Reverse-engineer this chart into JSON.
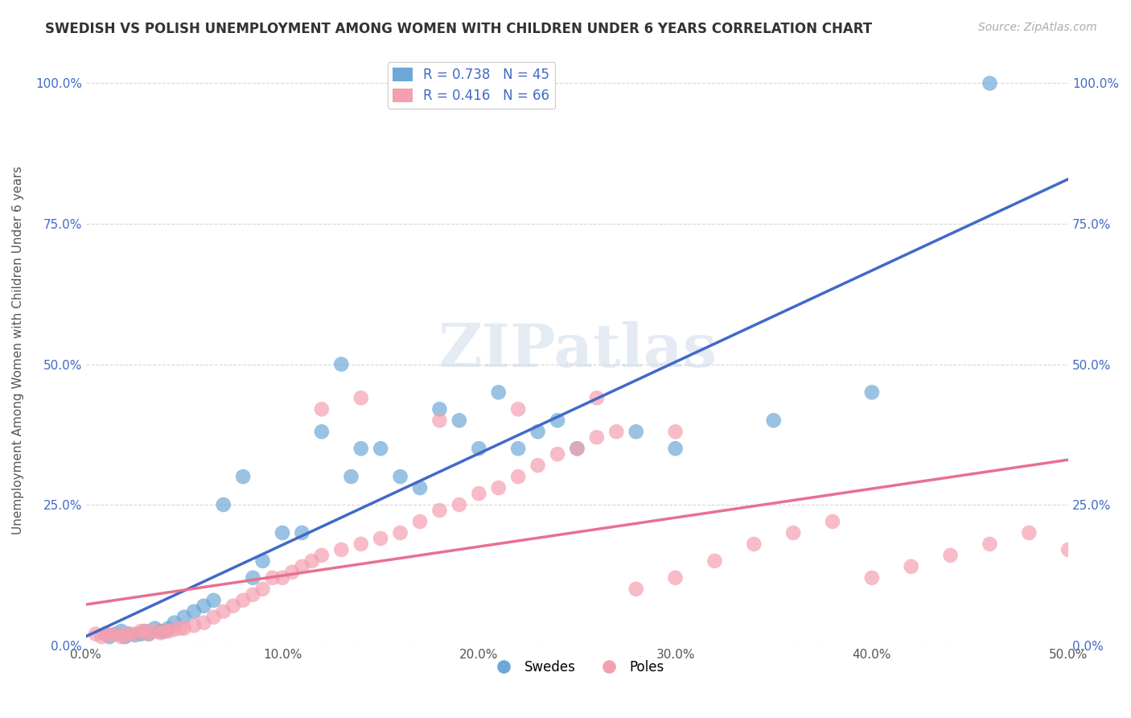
{
  "title": "SWEDISH VS POLISH UNEMPLOYMENT AMONG WOMEN WITH CHILDREN UNDER 6 YEARS CORRELATION CHART",
  "source": "Source: ZipAtlas.com",
  "ylabel": "Unemployment Among Women with Children Under 6 years",
  "xlim": [
    0.0,
    0.5
  ],
  "ylim": [
    0.0,
    1.05
  ],
  "xticks": [
    0.0,
    0.1,
    0.2,
    0.3,
    0.4,
    0.5
  ],
  "xtick_labels": [
    "0.0%",
    "10.0%",
    "20.0%",
    "30.0%",
    "40.0%",
    "50.0%"
  ],
  "yticks": [
    0.0,
    0.25,
    0.5,
    0.75,
    1.0
  ],
  "ytick_labels": [
    "0.0%",
    "25.0%",
    "50.0%",
    "75.0%",
    "100.0%"
  ],
  "blue_R": "0.738",
  "blue_N": "45",
  "pink_R": "0.416",
  "pink_N": "66",
  "blue_color": "#6ea8d8",
  "pink_color": "#f4a0b0",
  "blue_line_color": "#4169c8",
  "pink_line_color": "#e87090",
  "legend_label_blue": "Swedes",
  "legend_label_pink": "Poles",
  "watermark": "ZIPatlas",
  "blue_scatter_x": [
    0.01,
    0.012,
    0.015,
    0.018,
    0.02,
    0.022,
    0.025,
    0.028,
    0.03,
    0.032,
    0.035,
    0.038,
    0.04,
    0.042,
    0.045,
    0.05,
    0.055,
    0.06,
    0.065,
    0.07,
    0.08,
    0.085,
    0.09,
    0.1,
    0.11,
    0.12,
    0.13,
    0.135,
    0.14,
    0.15,
    0.16,
    0.17,
    0.18,
    0.19,
    0.2,
    0.21,
    0.22,
    0.23,
    0.24,
    0.25,
    0.28,
    0.3,
    0.35,
    0.4,
    0.46
  ],
  "blue_scatter_y": [
    0.02,
    0.015,
    0.02,
    0.025,
    0.015,
    0.02,
    0.018,
    0.02,
    0.025,
    0.02,
    0.03,
    0.025,
    0.025,
    0.03,
    0.04,
    0.05,
    0.06,
    0.07,
    0.08,
    0.25,
    0.3,
    0.12,
    0.15,
    0.2,
    0.2,
    0.38,
    0.5,
    0.3,
    0.35,
    0.35,
    0.3,
    0.28,
    0.42,
    0.4,
    0.35,
    0.45,
    0.35,
    0.38,
    0.4,
    0.35,
    0.38,
    0.35,
    0.4,
    0.45,
    1.0
  ],
  "pink_scatter_x": [
    0.005,
    0.008,
    0.01,
    0.012,
    0.015,
    0.018,
    0.02,
    0.022,
    0.025,
    0.028,
    0.03,
    0.032,
    0.035,
    0.038,
    0.04,
    0.042,
    0.045,
    0.048,
    0.05,
    0.055,
    0.06,
    0.065,
    0.07,
    0.075,
    0.08,
    0.085,
    0.09,
    0.095,
    0.1,
    0.105,
    0.11,
    0.115,
    0.12,
    0.13,
    0.14,
    0.15,
    0.16,
    0.17,
    0.18,
    0.19,
    0.2,
    0.21,
    0.22,
    0.23,
    0.24,
    0.25,
    0.26,
    0.27,
    0.28,
    0.3,
    0.32,
    0.34,
    0.36,
    0.38,
    0.4,
    0.42,
    0.44,
    0.46,
    0.48,
    0.5,
    0.12,
    0.14,
    0.18,
    0.22,
    0.26,
    0.3
  ],
  "pink_scatter_y": [
    0.02,
    0.015,
    0.02,
    0.018,
    0.02,
    0.015,
    0.018,
    0.02,
    0.02,
    0.025,
    0.025,
    0.02,
    0.025,
    0.022,
    0.025,
    0.025,
    0.028,
    0.03,
    0.03,
    0.035,
    0.04,
    0.05,
    0.06,
    0.07,
    0.08,
    0.09,
    0.1,
    0.12,
    0.12,
    0.13,
    0.14,
    0.15,
    0.16,
    0.17,
    0.18,
    0.19,
    0.2,
    0.22,
    0.24,
    0.25,
    0.27,
    0.28,
    0.3,
    0.32,
    0.34,
    0.35,
    0.37,
    0.38,
    0.1,
    0.12,
    0.15,
    0.18,
    0.2,
    0.22,
    0.12,
    0.14,
    0.16,
    0.18,
    0.2,
    0.17,
    0.42,
    0.44,
    0.4,
    0.42,
    0.44,
    0.38
  ]
}
